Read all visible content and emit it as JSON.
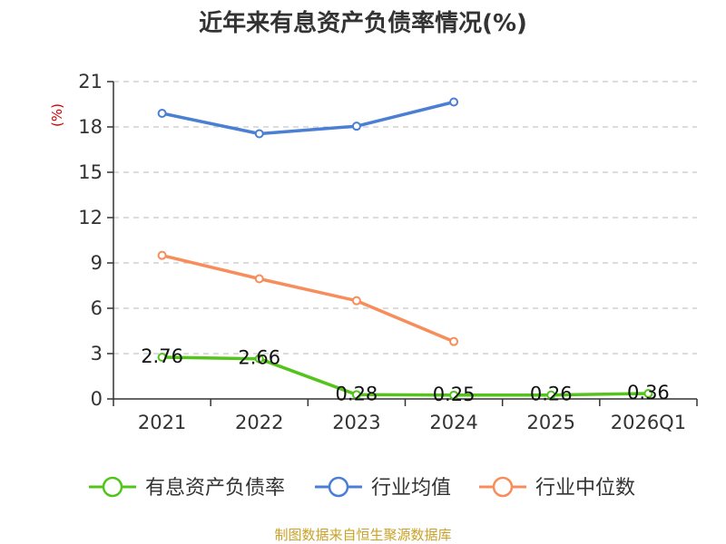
{
  "title": "近年来有息资产负债率情况(%)",
  "source": "制图数据来自恒生聚源数据库",
  "chart_data": {
    "type": "line",
    "title": "近年来有息资产负债率情况(%)",
    "ylabel": "(%)",
    "xlabel": "",
    "categories": [
      "2021",
      "2022",
      "2023",
      "2024",
      "2025",
      "2026Q1"
    ],
    "ylim": [
      0,
      21
    ],
    "yticks": [
      0,
      3,
      6,
      9,
      12,
      15,
      18,
      21
    ],
    "grid": true,
    "legend_position": "bottom",
    "series": [
      {
        "name": "有息资产负债率",
        "color": "#52c41a",
        "values": [
          2.76,
          2.66,
          0.28,
          0.25,
          0.26,
          0.36
        ],
        "labels": [
          "2.76",
          "2.66",
          "0.28",
          "0.25",
          "0.26",
          "0.36"
        ]
      },
      {
        "name": "行业均值",
        "color": "#4a7fd4",
        "values": [
          18.9,
          17.55,
          18.05,
          19.65,
          null,
          null
        ]
      },
      {
        "name": "行业中位数",
        "color": "#f78d5a",
        "values": [
          9.5,
          7.95,
          6.5,
          3.8,
          null,
          null
        ]
      }
    ]
  }
}
